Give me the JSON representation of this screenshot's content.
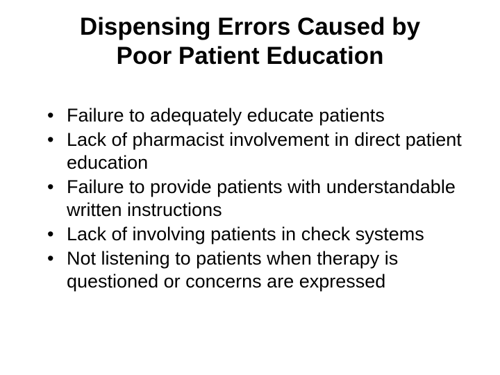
{
  "title_line1": "Dispensing Errors Caused by",
  "title_line2": "Poor Patient Education",
  "bullets": [
    "Failure to adequately educate patients",
    "Lack of pharmacist involvement in direct patient education",
    "Failure to provide patients with understandable written instructions",
    "Lack of involving patients in check systems",
    "Not listening to patients when therapy is questioned or concerns are expressed"
  ]
}
